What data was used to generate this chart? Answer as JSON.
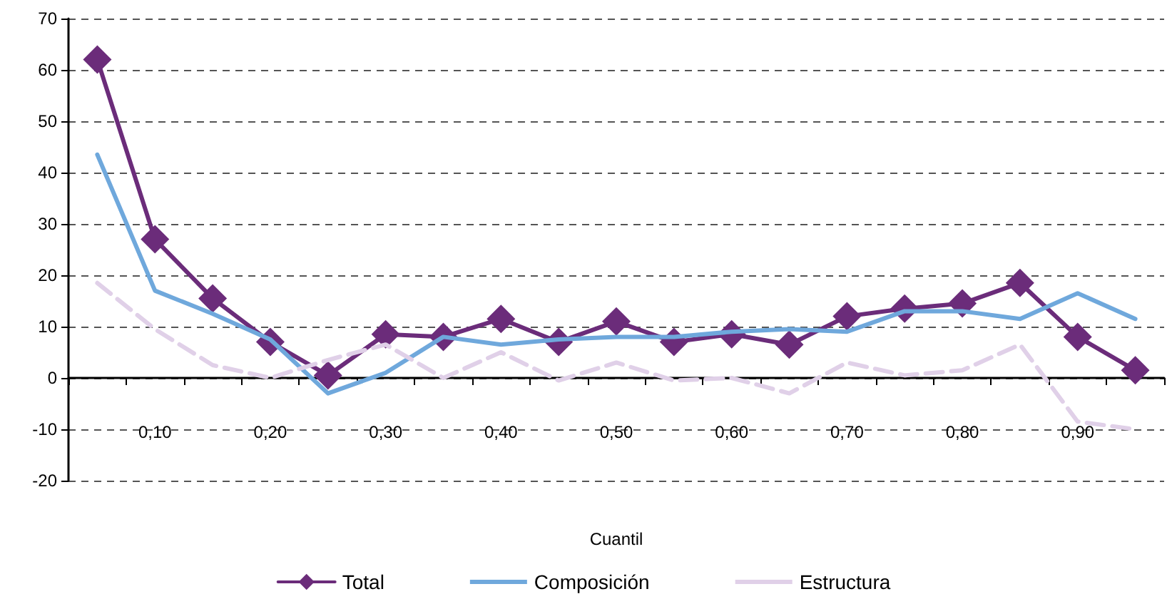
{
  "chart_data": {
    "type": "line",
    "xlabel": "Cuantil",
    "categories": [
      null,
      "0,10",
      null,
      "0,20",
      null,
      "0,30",
      null,
      "0,40",
      null,
      "0,50",
      null,
      "0,60",
      null,
      "0,70",
      null,
      "0,80",
      null,
      "0,90",
      null
    ],
    "series": [
      {
        "name": "Total",
        "color": "#6b2c7a",
        "marker": "diamond",
        "line_style": "solid",
        "values": [
          62,
          27,
          15.5,
          7,
          0.5,
          8.5,
          8,
          11.5,
          7,
          11,
          7,
          8.5,
          6.5,
          12,
          13.5,
          14.5,
          18.5,
          8,
          1.5
        ]
      },
      {
        "name": "Composición",
        "color": "#6fa8dc",
        "marker": "none",
        "line_style": "solid",
        "values": [
          43.5,
          17,
          12.5,
          7.5,
          -3,
          1,
          8,
          6.5,
          7.5,
          8,
          8,
          9,
          9.5,
          9,
          13,
          13,
          11.5,
          16.5,
          11.5
        ]
      },
      {
        "name": "Estructura",
        "color": "#e0d0e8",
        "marker": "none",
        "line_style": "dashed",
        "values": [
          18.5,
          9.5,
          2.5,
          0,
          3.5,
          6.5,
          0,
          5,
          -0.5,
          3,
          -0.5,
          0,
          -3,
          3,
          0.5,
          1.5,
          6.5,
          -8.5,
          -10
        ]
      }
    ],
    "ylim": [
      -20,
      70
    ],
    "yticks": [
      -20,
      -10,
      0,
      10,
      20,
      30,
      40,
      50,
      60,
      70
    ],
    "grid": "y",
    "legend": "bottom"
  }
}
